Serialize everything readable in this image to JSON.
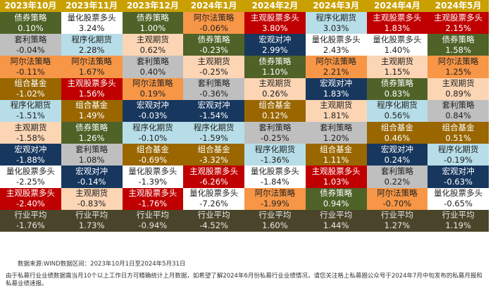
{
  "chart_data": {
    "type": "table",
    "colors": {
      "债券策略": "#4f6228",
      "量化股票多头": "#ffffff",
      "阿尔法策略": "#f79646",
      "主观股票多头": "#c00000",
      "套利策略": "#bfbfbf",
      "程序化期货": "#b7dee8",
      "主观期货": "#fcd5b4",
      "组合基金": "#996600",
      "宏观对冲": "#17375e",
      "行业平均": "#4a452a",
      "header": "#c9a000"
    },
    "columns": [
      {
        "month": "2023年10月",
        "rows": [
          [
            "债券策略",
            "0.10%"
          ],
          [
            "套利策略",
            "-0.04%"
          ],
          [
            "阿尔法策略",
            "-0.11%"
          ],
          [
            "组合基金",
            "-1.02%"
          ],
          [
            "程序化期货",
            "-1.51%"
          ],
          [
            "主观期货",
            "-1.58%"
          ],
          [
            "宏观对冲",
            "-1.88%"
          ],
          [
            "量化股票多头",
            "-2.25%"
          ],
          [
            "主观股票多头",
            "-2.40%"
          ]
        ],
        "average": [
          "行业平均",
          "-1.76%"
        ]
      },
      {
        "month": "2023年11月",
        "rows": [
          [
            "量化股票多头",
            "3.24%"
          ],
          [
            "程序化期货",
            "2.28%"
          ],
          [
            "阿尔法策略",
            "1.67%"
          ],
          [
            "主观股票多头",
            "1.56%"
          ],
          [
            "组合基金",
            "1.49%"
          ],
          [
            "债券策略",
            "1.26%"
          ],
          [
            "套利策略",
            "1.08%"
          ],
          [
            "宏观对冲",
            "-0.14%"
          ],
          [
            "主观期货",
            "-0.83%"
          ]
        ],
        "average": [
          "行业平均",
          "1.73%"
        ]
      },
      {
        "month": "2023年12月",
        "rows": [
          [
            "债券策略",
            "1.00%"
          ],
          [
            "主观期货",
            "0.62%"
          ],
          [
            "套利策略",
            "0.40%"
          ],
          [
            "阿尔法策略",
            "0.19%"
          ],
          [
            "宏观对冲",
            "-0.03%"
          ],
          [
            "程序化期货",
            "-0.10%"
          ],
          [
            "组合基金",
            "-0.69%"
          ],
          [
            "量化股票多头",
            "-1.39%"
          ],
          [
            "主观股票多头",
            "-1.76%"
          ]
        ],
        "average": [
          "行业平均",
          "-0.94%"
        ]
      },
      {
        "month": "2024年1月",
        "rows": [
          [
            "阿尔法策略",
            "-0.06%"
          ],
          [
            "债券策略",
            "-0.23%"
          ],
          [
            "主观期货",
            "-0.25%"
          ],
          [
            "套利策略",
            "-0.36%"
          ],
          [
            "宏观对冲",
            "-1.54%"
          ],
          [
            "程序化期货",
            "-1.59%"
          ],
          [
            "组合基金",
            "-3.32%"
          ],
          [
            "主观股票多头",
            "-6.26%"
          ],
          [
            "量化股票多头",
            "-7.26%"
          ]
        ],
        "average": [
          "行业平均",
          "-4.52%"
        ]
      },
      {
        "month": "2024年2月",
        "rows": [
          [
            "主观股票多头",
            "3.80%"
          ],
          [
            "宏观对冲",
            "2.99%"
          ],
          [
            "债券策略",
            "1.10%"
          ],
          [
            "主观期货",
            "0.26%"
          ],
          [
            "组合基金",
            "0.12%"
          ],
          [
            "套利策略",
            "-0.25%"
          ],
          [
            "程序化期货",
            "-1.36%"
          ],
          [
            "量化股票多头",
            "-1.84%"
          ],
          [
            "阿尔法策略",
            "-1.99%"
          ]
        ],
        "average": [
          "行业平均",
          "1.60%"
        ]
      },
      {
        "month": "2024年3月",
        "rows": [
          [
            "程序化期货",
            "3.03%"
          ],
          [
            "量化股票多头",
            "2.43%"
          ],
          [
            "阿尔法策略",
            "2.21%"
          ],
          [
            "宏观对冲",
            "1.83%"
          ],
          [
            "主观期货",
            "1.81%"
          ],
          [
            "套利策略",
            "1.20%"
          ],
          [
            "组合基金",
            "1.11%"
          ],
          [
            "主观股票多头",
            "1.03%"
          ],
          [
            "债券策略",
            "0.94%"
          ]
        ],
        "average": [
          "行业平均",
          "1.44%"
        ]
      },
      {
        "month": "2024年4月",
        "rows": [
          [
            "主观股票多头",
            "1.83%"
          ],
          [
            "量化股票多头",
            "1.40%"
          ],
          [
            "主观期货",
            "1.15%"
          ],
          [
            "债券策略",
            "0.83%"
          ],
          [
            "程序化期货",
            "0.56%"
          ],
          [
            "组合基金",
            "0.46%"
          ],
          [
            "宏观对冲",
            "0.24%"
          ],
          [
            "套利策略",
            "0.22%"
          ],
          [
            "阿尔法策略",
            "-0.70%"
          ]
        ],
        "average": [
          "行业平均",
          "1.27%"
        ]
      },
      {
        "month": "2024年5月",
        "rows": [
          [
            "主观股票多头",
            "2.15%"
          ],
          [
            "债券策略",
            "1.58%"
          ],
          [
            "阿尔法策略",
            "1.25%"
          ],
          [
            "主观期货",
            "0.89%"
          ],
          [
            "套利策略",
            "0.84%"
          ],
          [
            "组合基金",
            "0.51%"
          ],
          [
            "程序化期货",
            "-0.19%"
          ],
          [
            "宏观对冲",
            "-0.63%"
          ],
          [
            "量化股票多头",
            "-0.65%"
          ]
        ],
        "average": [
          "行业平均",
          "1.19%"
        ]
      }
    ]
  },
  "notes": {
    "source": "数据来源:WIND数据区间：2023年10月1日至2024年5月31日",
    "disclaimer": "由于私募行业业绩数据需当月10个以上工作日方可精确统计上月数据，如希望了解2024年6月份私募行业业绩情况，请您关注格上私募圈公众号于2024年7月中旬发布的私募月报和私募业绩速报。"
  }
}
